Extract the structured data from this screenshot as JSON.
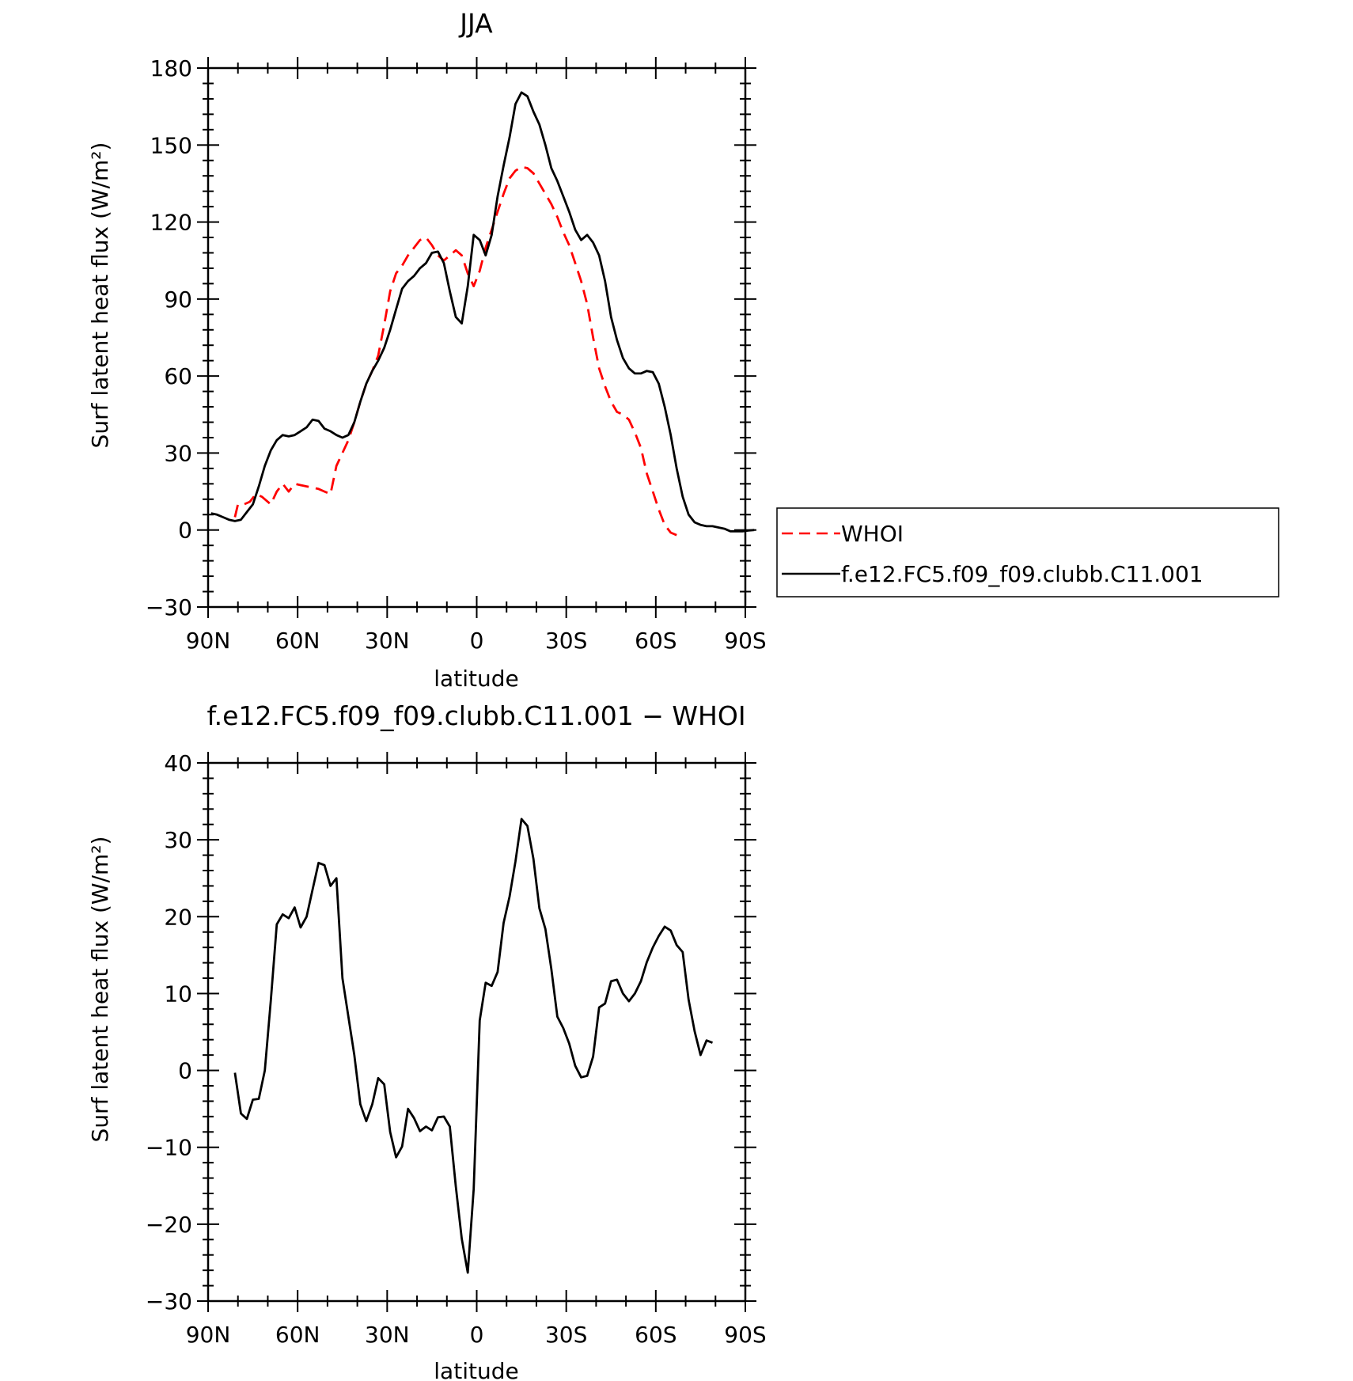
{
  "chart_data": [
    {
      "type": "line",
      "title": "JJA",
      "xlabel": "latitude",
      "ylabel": "Surf latent heat flux (W/m²)",
      "xlim": [
        90,
        -90
      ],
      "ylim": [
        -30,
        180
      ],
      "xticks": [
        90,
        60,
        30,
        0,
        -30,
        -60,
        -90
      ],
      "xtick_labels": [
        "90N",
        "60N",
        "30N",
        "0",
        "30S",
        "60S",
        "90S"
      ],
      "yticks": [
        -30,
        0,
        30,
        60,
        90,
        120,
        150,
        180
      ],
      "ytick_labels": [
        "−30",
        "0",
        "30",
        "60",
        "90",
        "120",
        "150",
        "180"
      ],
      "grid": false,
      "legend": "right, outside",
      "series": [
        {
          "name": "WHOI",
          "color": "#ff0000",
          "dash": "dashed",
          "points": [
            [
              81,
              5
            ],
            [
              80,
              10
            ],
            [
              78,
              10
            ],
            [
              76,
              11
            ],
            [
              74,
              14
            ],
            [
              72,
              13
            ],
            [
              71,
              12
            ],
            [
              69,
              10
            ],
            [
              67,
              15
            ],
            [
              65,
              18
            ],
            [
              63,
              15
            ],
            [
              61,
              18
            ],
            [
              59,
              17.5
            ],
            [
              57,
              17
            ],
            [
              55,
              16.5
            ],
            [
              53,
              16
            ],
            [
              51,
              15
            ],
            [
              49,
              14
            ],
            [
              47,
              25
            ],
            [
              45,
              30
            ],
            [
              43,
              35
            ],
            [
              41,
              42
            ],
            [
              39,
              50
            ],
            [
              37,
              57
            ],
            [
              35,
              62
            ],
            [
              33,
              68
            ],
            [
              31,
              80
            ],
            [
              29,
              93
            ],
            [
              27,
              100
            ],
            [
              25,
              103
            ],
            [
              23,
              107
            ],
            [
              21,
              110
            ],
            [
              19,
              113
            ],
            [
              17,
              114
            ],
            [
              15,
              111
            ],
            [
              13,
              107
            ],
            [
              11,
              105
            ],
            [
              9,
              107
            ],
            [
              7,
              109
            ],
            [
              5,
              107
            ],
            [
              3,
              100
            ],
            [
              1,
              95
            ],
            [
              -1,
              101
            ],
            [
              -3,
              110
            ],
            [
              -5,
              117
            ],
            [
              -7,
              124
            ],
            [
              -9,
              131
            ],
            [
              -11,
              137
            ],
            [
              -13,
              140
            ],
            [
              -15,
              141.5
            ],
            [
              -17,
              141
            ],
            [
              -19,
              139
            ],
            [
              -21,
              135
            ],
            [
              -23,
              131
            ],
            [
              -25,
              127
            ],
            [
              -27,
              122
            ],
            [
              -29,
              116
            ],
            [
              -31,
              111
            ],
            [
              -33,
              104
            ],
            [
              -35,
              97
            ],
            [
              -37,
              88
            ],
            [
              -39,
              75
            ],
            [
              -41,
              63
            ],
            [
              -43,
              56
            ],
            [
              -45,
              50
            ],
            [
              -47,
              46
            ],
            [
              -49,
              45
            ],
            [
              -51,
              43
            ],
            [
              -53,
              38
            ],
            [
              -55,
              32
            ],
            [
              -57,
              22
            ],
            [
              -59,
              15
            ],
            [
              -61,
              8
            ],
            [
              -63,
              2
            ],
            [
              -65,
              -1
            ],
            [
              -67,
              -2
            ]
          ]
        },
        {
          "name": "f.e12.FC5.f09_f09.clubb.C11.001",
          "color": "#000000",
          "dash": "solid",
          "points": [
            [
              89,
              6.5
            ],
            [
              87,
              6
            ],
            [
              85,
              5
            ],
            [
              83,
              4
            ],
            [
              81,
              3.5
            ],
            [
              79,
              4
            ],
            [
              77,
              7
            ],
            [
              75,
              10
            ],
            [
              73,
              17
            ],
            [
              71,
              25
            ],
            [
              69,
              31
            ],
            [
              67,
              35
            ],
            [
              65,
              37
            ],
            [
              63,
              36.5
            ],
            [
              61,
              37
            ],
            [
              59,
              38.5
            ],
            [
              57,
              40
            ],
            [
              55,
              43
            ],
            [
              53,
              42.5
            ],
            [
              51,
              39.5
            ],
            [
              49,
              38.5
            ],
            [
              47,
              37
            ],
            [
              45,
              36
            ],
            [
              43,
              37
            ],
            [
              41,
              42
            ],
            [
              39,
              50
            ],
            [
              37,
              57
            ],
            [
              35,
              62
            ],
            [
              33,
              66
            ],
            [
              31,
              71
            ],
            [
              29,
              78
            ],
            [
              27,
              86
            ],
            [
              25,
              94
            ],
            [
              23,
              97
            ],
            [
              21,
              99
            ],
            [
              19,
              102
            ],
            [
              17,
              104
            ],
            [
              15,
              108
            ],
            [
              13,
              108.5
            ],
            [
              11,
              104
            ],
            [
              9,
              93
            ],
            [
              7,
              83
            ],
            [
              5,
              80.5
            ],
            [
              3,
              95
            ],
            [
              1,
              115
            ],
            [
              -1,
              113
            ],
            [
              -3,
              107
            ],
            [
              -5,
              115
            ],
            [
              -7,
              130
            ],
            [
              -9,
              142
            ],
            [
              -11,
              153
            ],
            [
              -13,
              166
            ],
            [
              -15,
              170.5
            ],
            [
              -17,
              169
            ],
            [
              -19,
              163
            ],
            [
              -21,
              158
            ],
            [
              -23,
              150
            ],
            [
              -25,
              141
            ],
            [
              -27,
              136
            ],
            [
              -29,
              130
            ],
            [
              -31,
              124
            ],
            [
              -33,
              117
            ],
            [
              -35,
              113
            ],
            [
              -37,
              115
            ],
            [
              -39,
              112
            ],
            [
              -41,
              107
            ],
            [
              -43,
              97
            ],
            [
              -45,
              83
            ],
            [
              -47,
              74
            ],
            [
              -49,
              67
            ],
            [
              -51,
              63
            ],
            [
              -53,
              61
            ],
            [
              -55,
              61
            ],
            [
              -57,
              62
            ],
            [
              -59,
              61.5
            ],
            [
              -61,
              57
            ],
            [
              -63,
              48
            ],
            [
              -65,
              37
            ],
            [
              -67,
              24
            ],
            [
              -69,
              13
            ],
            [
              -71,
              6
            ],
            [
              -73,
              3
            ],
            [
              -75,
              2
            ],
            [
              -77,
              1.5
            ],
            [
              -79,
              1.5
            ],
            [
              -81,
              1
            ],
            [
              -83,
              0.5
            ],
            [
              -85,
              -0.5
            ],
            [
              -87,
              -0.5
            ],
            [
              -89,
              -0.5
            ],
            [
              -91,
              -0.2
            ],
            [
              -93,
              0
            ]
          ]
        }
      ]
    },
    {
      "type": "line",
      "title": "f.e12.FC5.f09_f09.clubb.C11.001 − WHOI",
      "xlabel": "latitude",
      "ylabel": "Surf latent heat flux (W/m²)",
      "xlim": [
        90,
        -90
      ],
      "ylim": [
        -30,
        40
      ],
      "xticks": [
        90,
        60,
        30,
        0,
        -30,
        -60,
        -90
      ],
      "xtick_labels": [
        "90N",
        "60N",
        "30N",
        "0",
        "30S",
        "60S",
        "90S"
      ],
      "yticks": [
        -30,
        -20,
        -10,
        0,
        10,
        20,
        30,
        40
      ],
      "ytick_labels": [
        "−30",
        "−20",
        "−10",
        "0",
        "10",
        "20",
        "30",
        "40"
      ],
      "grid": false,
      "series": [
        {
          "color": "#000000",
          "dash": "solid",
          "points": [
            [
              81,
              -0.3
            ],
            [
              79,
              -5.6
            ],
            [
              77,
              -6.3
            ],
            [
              75,
              -3.8
            ],
            [
              73,
              -3.7
            ],
            [
              71,
              0
            ],
            [
              69,
              9
            ],
            [
              67,
              19
            ],
            [
              65,
              20.3
            ],
            [
              63,
              19.8
            ],
            [
              61,
              21.2
            ],
            [
              59,
              18.6
            ],
            [
              57,
              20
            ],
            [
              55,
              23.5
            ],
            [
              53,
              27
            ],
            [
              51,
              26.7
            ],
            [
              49,
              24
            ],
            [
              47,
              25
            ],
            [
              45,
              12
            ],
            [
              43,
              7
            ],
            [
              41,
              2
            ],
            [
              39,
              -4.4
            ],
            [
              37,
              -6.6
            ],
            [
              35,
              -4.4
            ],
            [
              33,
              -1
            ],
            [
              31,
              -1.8
            ],
            [
              29,
              -8
            ],
            [
              27,
              -11.3
            ],
            [
              25,
              -9.9
            ],
            [
              23,
              -5
            ],
            [
              21,
              -6.2
            ],
            [
              19,
              -7.9
            ],
            [
              17,
              -7.3
            ],
            [
              15,
              -7.8
            ],
            [
              13,
              -6.1
            ],
            [
              11,
              -6
            ],
            [
              9,
              -7.3
            ],
            [
              7,
              -15.1
            ],
            [
              5,
              -21.9
            ],
            [
              3,
              -26.3
            ],
            [
              1,
              -15.4
            ],
            [
              -1,
              6.5
            ],
            [
              -3,
              11.4
            ],
            [
              -5,
              11
            ],
            [
              -7,
              12.8
            ],
            [
              -9,
              19.2
            ],
            [
              -11,
              22.6
            ],
            [
              -13,
              27.2
            ],
            [
              -15,
              32.7
            ],
            [
              -17,
              31.8
            ],
            [
              -19,
              27.5
            ],
            [
              -21,
              21.1
            ],
            [
              -23,
              18.4
            ],
            [
              -25,
              13.2
            ],
            [
              -27,
              7
            ],
            [
              -29,
              5.5
            ],
            [
              -31,
              3.5
            ],
            [
              -33,
              0.6
            ],
            [
              -35,
              -0.9
            ],
            [
              -37,
              -0.7
            ],
            [
              -39,
              1.8
            ],
            [
              -41,
              8.2
            ],
            [
              -43,
              8.7
            ],
            [
              -45,
              11.6
            ],
            [
              -47,
              11.8
            ],
            [
              -49,
              10
            ],
            [
              -51,
              9
            ],
            [
              -53,
              10
            ],
            [
              -55,
              11.6
            ],
            [
              -57,
              14.1
            ],
            [
              -59,
              16
            ],
            [
              -61,
              17.5
            ],
            [
              -63,
              18.7
            ],
            [
              -65,
              18.2
            ],
            [
              -67,
              16.3
            ],
            [
              -69,
              15.4
            ],
            [
              -71,
              9.2
            ],
            [
              -73,
              5.1
            ],
            [
              -75,
              2
            ],
            [
              -77,
              3.9
            ],
            [
              -79,
              3.6
            ]
          ]
        }
      ]
    }
  ]
}
